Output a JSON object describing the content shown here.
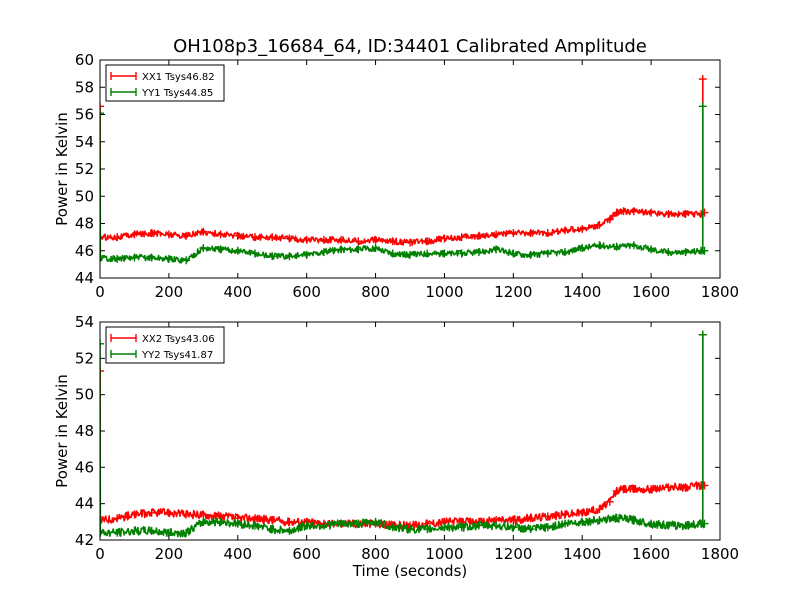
{
  "figure": {
    "title": "OH108p3_16684_64, ID:34401 Calibrated Amplitude",
    "xlabel": "Time (seconds)"
  },
  "chart_data": [
    {
      "type": "line",
      "ylabel": "Power in Kelvin",
      "xlabel": "",
      "xlim": [
        0,
        1800
      ],
      "ylim": [
        44,
        60
      ],
      "xticks": [
        "0",
        "200",
        "400",
        "600",
        "800",
        "1000",
        "1200",
        "1400",
        "1600",
        "1800"
      ],
      "yticks": [
        "44",
        "46",
        "48",
        "50",
        "52",
        "54",
        "56",
        "58",
        "60"
      ],
      "legend_position": "top-left",
      "grid": false,
      "series": [
        {
          "name": "XX1 Tsys46.82",
          "color": "#ff0000",
          "x": [
            0,
            1,
            50,
            100,
            150,
            200,
            250,
            300,
            350,
            400,
            450,
            500,
            550,
            600,
            650,
            700,
            750,
            800,
            850,
            900,
            950,
            1000,
            1050,
            1100,
            1150,
            1200,
            1250,
            1300,
            1350,
            1400,
            1450,
            1480,
            1500,
            1520,
            1550,
            1600,
            1650,
            1700,
            1745,
            1750,
            1755
          ],
          "y": [
            56.6,
            47.0,
            47.0,
            47.2,
            47.3,
            47.2,
            47.1,
            47.4,
            47.2,
            47.1,
            47.0,
            47.0,
            46.9,
            46.8,
            46.8,
            46.8,
            46.7,
            46.8,
            46.7,
            46.6,
            46.7,
            46.9,
            47.0,
            47.1,
            47.2,
            47.3,
            47.3,
            47.3,
            47.5,
            47.6,
            47.9,
            48.3,
            48.8,
            48.9,
            48.9,
            48.8,
            48.7,
            48.7,
            48.7,
            58.6,
            48.8
          ]
        },
        {
          "name": "YY1 Tsys44.85",
          "color": "#008000",
          "x": [
            0,
            1,
            50,
            100,
            150,
            200,
            250,
            300,
            350,
            400,
            450,
            500,
            550,
            600,
            650,
            700,
            750,
            800,
            850,
            900,
            950,
            1000,
            1050,
            1100,
            1150,
            1200,
            1250,
            1300,
            1350,
            1400,
            1450,
            1500,
            1550,
            1600,
            1650,
            1700,
            1745,
            1750,
            1755
          ],
          "y": [
            56.1,
            45.5,
            45.4,
            45.5,
            45.5,
            45.4,
            45.3,
            46.2,
            46.1,
            46.0,
            45.8,
            45.6,
            45.6,
            45.7,
            45.9,
            46.1,
            46.1,
            46.2,
            45.8,
            45.7,
            45.8,
            45.8,
            45.8,
            45.9,
            46.1,
            45.8,
            45.7,
            45.8,
            45.9,
            46.2,
            46.4,
            46.3,
            46.4,
            46.1,
            45.9,
            45.9,
            46.0,
            56.6,
            46.0
          ]
        }
      ]
    },
    {
      "type": "line",
      "ylabel": "Power in Kelvin",
      "xlabel": "Time (seconds)",
      "xlim": [
        0,
        1800
      ],
      "ylim": [
        42,
        54
      ],
      "xticks": [
        "0",
        "200",
        "400",
        "600",
        "800",
        "1000",
        "1200",
        "1400",
        "1600",
        "1800"
      ],
      "yticks": [
        "42",
        "44",
        "46",
        "48",
        "50",
        "52",
        "54"
      ],
      "legend_position": "top-left",
      "grid": false,
      "series": [
        {
          "name": "XX2 Tsys43.06",
          "color": "#ff0000",
          "x": [
            0,
            1,
            50,
            100,
            150,
            200,
            250,
            300,
            350,
            400,
            450,
            500,
            550,
            600,
            650,
            700,
            750,
            800,
            850,
            900,
            950,
            1000,
            1050,
            1100,
            1150,
            1200,
            1250,
            1300,
            1350,
            1400,
            1450,
            1480,
            1500,
            1520,
            1550,
            1600,
            1650,
            1700,
            1745,
            1750,
            1755
          ],
          "y": [
            51.3,
            43.1,
            43.2,
            43.4,
            43.5,
            43.5,
            43.4,
            43.4,
            43.3,
            43.2,
            43.2,
            43.1,
            43.0,
            43.0,
            42.9,
            42.9,
            42.9,
            42.9,
            42.8,
            42.8,
            42.9,
            43.0,
            43.0,
            43.0,
            43.1,
            43.1,
            43.2,
            43.3,
            43.4,
            43.5,
            43.7,
            44.1,
            44.7,
            44.8,
            44.8,
            44.8,
            44.9,
            44.9,
            45.0,
            53.3,
            45.0
          ]
        },
        {
          "name": "YY2 Tsys41.87",
          "color": "#008000",
          "x": [
            0,
            1,
            50,
            100,
            150,
            200,
            250,
            300,
            350,
            400,
            450,
            500,
            550,
            600,
            650,
            700,
            750,
            800,
            850,
            900,
            950,
            1000,
            1050,
            1100,
            1150,
            1200,
            1250,
            1300,
            1350,
            1400,
            1450,
            1500,
            1550,
            1600,
            1650,
            1700,
            1745,
            1750,
            1755
          ],
          "y": [
            52.8,
            42.4,
            42.4,
            42.5,
            42.5,
            42.4,
            42.4,
            43.0,
            43.0,
            42.9,
            42.8,
            42.6,
            42.5,
            42.8,
            42.8,
            42.9,
            42.9,
            43.0,
            42.7,
            42.6,
            42.6,
            42.7,
            42.7,
            42.8,
            42.8,
            42.7,
            42.6,
            42.7,
            42.9,
            43.0,
            43.1,
            43.2,
            43.1,
            42.9,
            42.8,
            42.8,
            42.9,
            53.3,
            42.9
          ]
        }
      ]
    }
  ]
}
